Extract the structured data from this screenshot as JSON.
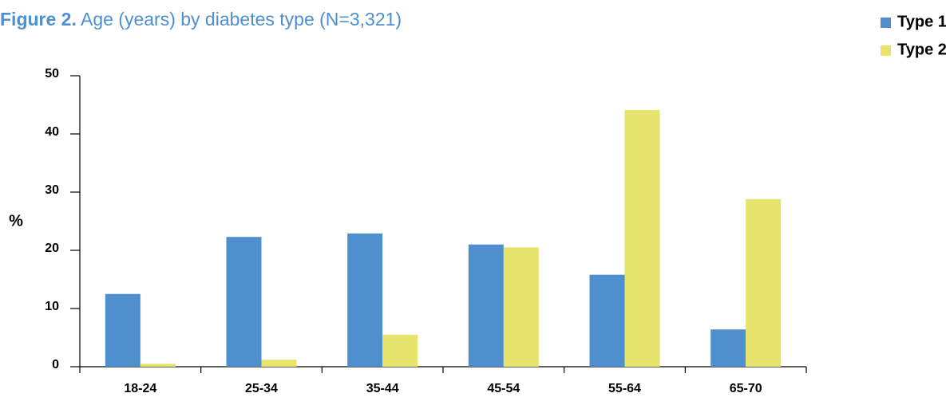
{
  "chart_data": {
    "type": "bar",
    "title_label": "Figure 2.",
    "title": "Age (years) by diabetes type (N=3,321)",
    "y_label": "%",
    "categories": [
      "18-24",
      "25-34",
      "35-44",
      "45-54",
      "55-64",
      "65-70"
    ],
    "series": [
      {
        "name": "Type 1",
        "color": "#4f8fcf",
        "values": [
          12.5,
          22.3,
          22.9,
          21.0,
          15.8,
          6.4
        ]
      },
      {
        "name": "Type 2",
        "color": "#e6e46c",
        "values": [
          0.5,
          1.2,
          5.5,
          20.5,
          44.1,
          28.8
        ]
      }
    ],
    "ylim": [
      0,
      50
    ],
    "yticks": [
      0,
      10,
      20,
      30,
      40,
      50
    ],
    "legend": "top-right",
    "grid": false
  }
}
